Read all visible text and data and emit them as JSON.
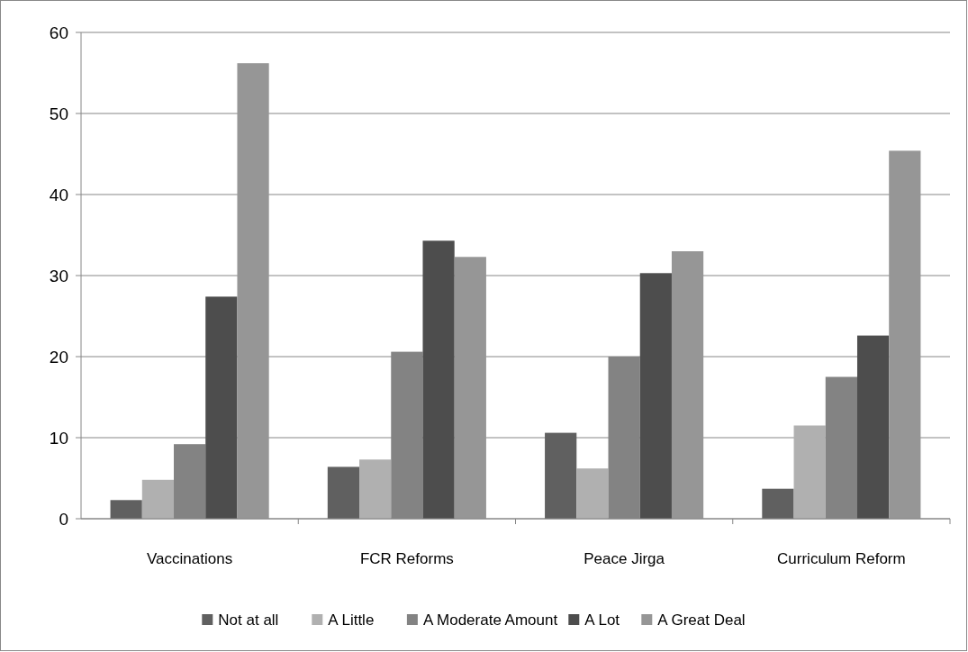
{
  "chart_data": {
    "type": "bar",
    "categories": [
      "Vaccinations",
      "FCR Reforms",
      "Peace Jirga",
      "Curriculum Reform"
    ],
    "series": [
      {
        "name": "Not at all",
        "color": "#606060",
        "values": [
          2.3,
          6.4,
          10.6,
          3.7
        ]
      },
      {
        "name": "A Little",
        "color": "#b0b0b0",
        "values": [
          4.8,
          7.3,
          6.2,
          11.5
        ]
      },
      {
        "name": "A Moderate Amount",
        "color": "#838383",
        "values": [
          9.2,
          20.6,
          20.0,
          17.5
        ]
      },
      {
        "name": "A Lot",
        "color": "#4d4d4d",
        "values": [
          27.4,
          34.3,
          30.3,
          22.6
        ]
      },
      {
        "name": "A Great Deal",
        "color": "#969696",
        "values": [
          56.2,
          32.3,
          33.0,
          45.4
        ]
      }
    ],
    "ylim": [
      0,
      60
    ],
    "yticks": [
      0,
      10,
      20,
      30,
      40,
      50,
      60
    ],
    "grid": "y",
    "legend": "bottom"
  }
}
